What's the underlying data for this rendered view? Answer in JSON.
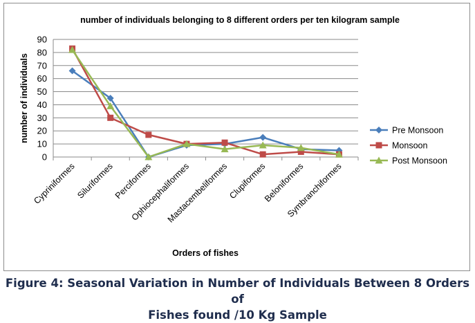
{
  "chart_data": {
    "type": "line",
    "title": "number of individuals belonging to 8 different orders per ten kilogram sample",
    "xlabel": "Orders of fishes",
    "ylabel": "number of individuals",
    "ylim": [
      0,
      90
    ],
    "yticks": [
      0,
      10,
      20,
      30,
      40,
      50,
      60,
      70,
      80,
      90
    ],
    "grid": true,
    "legend_position": "right",
    "categories": [
      "Cypriniformes",
      "Siluriformes",
      "Perciformes",
      "Ophiocephaliformes",
      "Mastacembeliformes",
      "Clupiformes",
      "Beloniformes",
      "Symbranchiformes"
    ],
    "series": [
      {
        "name": "Pre Monsoon",
        "color": "#4a7ebb",
        "marker": "diamond",
        "values": [
          66,
          45,
          0,
          9,
          10,
          15,
          6,
          5
        ]
      },
      {
        "name": "Monsoon",
        "color": "#be4b48",
        "marker": "square",
        "values": [
          83,
          30,
          17,
          10,
          11,
          2,
          4,
          2
        ]
      },
      {
        "name": "Post Monsoon",
        "color": "#98b954",
        "marker": "triangle",
        "values": [
          82,
          39,
          0,
          10,
          6,
          9,
          7,
          2
        ]
      }
    ]
  },
  "caption": {
    "line1": "Figure 4: Seasonal Variation in Number of Individuals Between 8 Orders of",
    "line2": "Fishes found /10 Kg Sample"
  }
}
